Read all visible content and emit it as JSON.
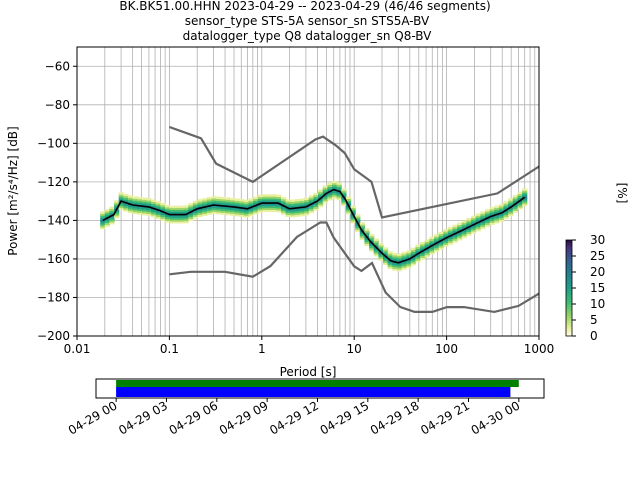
{
  "header": {
    "line1": "BK.BK51.00.HHN   2023-04-29 -- 2023-04-29  (46/46 segments)",
    "line2": "sensor_type STS-5A sensor_sn STS5A-BV",
    "line3": "datalogger_type Q8 datalogger_sn Q8-BV"
  },
  "chart_data": [
    {
      "type": "heatmap",
      "title": "BK.BK51.00.HHN   2023-04-29 -- 2023-04-29  (46/46 segments)",
      "xlabel": "Period [s]",
      "ylabel": "Power [m²/s⁴/Hz] [dB]",
      "xscale": "log",
      "xlim": [
        0.01,
        1000
      ],
      "ylim": [
        -200,
        -50
      ],
      "x_ticks": [
        "0.01",
        "0.1",
        "1",
        "10",
        "100",
        "1000"
      ],
      "y_ticks": [
        "−200",
        "−180",
        "−160",
        "−140",
        "−120",
        "−100",
        "−80",
        "−60"
      ],
      "grid": true,
      "colorbar": {
        "label": "[%]",
        "range": [
          0,
          30
        ],
        "ticks": [
          "0",
          "5",
          "10",
          "15",
          "20",
          "25",
          "30"
        ],
        "colormap": "viridis_r"
      },
      "mean_psd": {
        "period": [
          0.019,
          0.025,
          0.03,
          0.04,
          0.06,
          0.08,
          0.1,
          0.15,
          0.2,
          0.3,
          0.5,
          0.7,
          1,
          1.5,
          2,
          3,
          4,
          5,
          6,
          7,
          8,
          10,
          12,
          15,
          20,
          25,
          30,
          40,
          50,
          70,
          100,
          150,
          200,
          300,
          400,
          500,
          700
        ],
        "db": [
          -140,
          -137,
          -130,
          -132,
          -133,
          -135,
          -137,
          -137,
          -134,
          -132,
          -133,
          -134,
          -131,
          -131,
          -134,
          -133,
          -130,
          -126,
          -124,
          -125,
          -129,
          -138,
          -145,
          -151,
          -157,
          -161,
          -162,
          -160,
          -157,
          -153,
          -149,
          -145,
          -142,
          -138,
          -136,
          -133,
          -128
        ]
      },
      "nhnm": {
        "period": [
          0.1,
          0.22,
          0.32,
          0.8,
          3.8,
          4.6,
          6.3,
          7.9,
          10,
          15.4,
          20,
          354.8,
          1000
        ],
        "db": [
          -91.5,
          -97.4,
          -110.5,
          -120,
          -98,
          -96.5,
          -101,
          -105,
          -113.5,
          -120,
          -138.5,
          -126,
          -112
        ]
      },
      "nlnm": {
        "period": [
          0.1,
          0.17,
          0.4,
          0.8,
          1.24,
          2.4,
          4.3,
          5,
          6,
          10,
          12,
          15.6,
          21.9,
          31.6,
          45,
          70,
          101,
          154,
          328,
          600,
          1000
        ],
        "db": [
          -168,
          -166.7,
          -166.7,
          -169.2,
          -163.7,
          -148.6,
          -141.1,
          -141.1,
          -149,
          -163.8,
          -166.2,
          -162.1,
          -177.5,
          -185,
          -187.5,
          -187.5,
          -185,
          -185,
          -187.5,
          -184.4,
          -178
        ]
      }
    },
    {
      "type": "timeline",
      "x_ticks": [
        "04-29 00",
        "04-29 03",
        "04-29 06",
        "04-29 09",
        "04-29 12",
        "04-29 15",
        "04-29 18",
        "04-29 21",
        "04-30 00"
      ],
      "xlim_hours": [
        -1.2,
        25.5
      ],
      "data_availability": {
        "start_hour": 0,
        "end_hour": 24.0,
        "color": "#008000"
      },
      "psd_coverage": {
        "start_hour": 0,
        "end_hour": 23.5,
        "color": "#0000ff"
      }
    }
  ]
}
